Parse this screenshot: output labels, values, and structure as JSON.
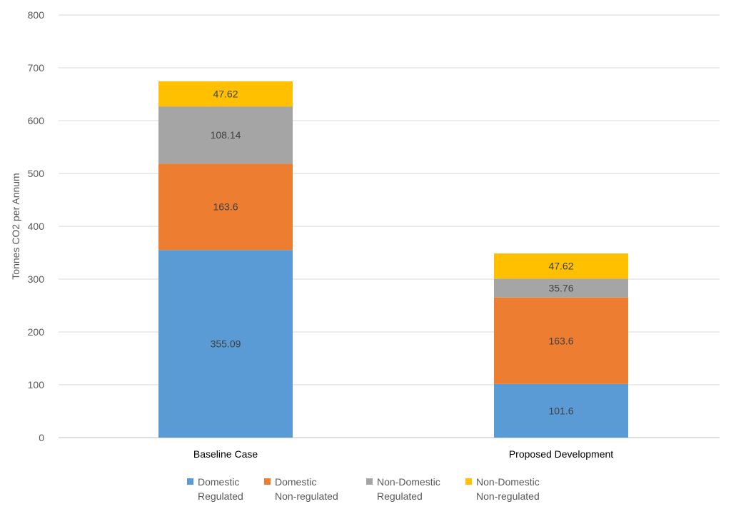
{
  "chart_data": {
    "type": "bar",
    "stacked": true,
    "categories": [
      "Baseline Case",
      "Proposed Development"
    ],
    "series": [
      {
        "name": "Domestic Regulated",
        "legend_lines": [
          "Domestic",
          "Regulated"
        ],
        "values": [
          355.09,
          101.6
        ],
        "color": "#5B9BD5"
      },
      {
        "name": "Domestic Non-regulated",
        "legend_lines": [
          "Domestic",
          "Non-regulated"
        ],
        "values": [
          163.6,
          163.6
        ],
        "color": "#ED7D31"
      },
      {
        "name": "Non-Domestic Regulated",
        "legend_lines": [
          "Non-Domestic",
          "Regulated"
        ],
        "values": [
          108.14,
          35.76
        ],
        "color": "#A5A5A5"
      },
      {
        "name": "Non-Domestic Non-regulated",
        "legend_lines": [
          "Non-Domestic",
          "Non-regulated"
        ],
        "values": [
          47.62,
          47.62
        ],
        "color": "#FFC000"
      }
    ],
    "xlabel": "",
    "ylabel": "Tonnes CO2 per Annum",
    "ylim": [
      0,
      800
    ],
    "yticks": [
      0,
      100,
      200,
      300,
      400,
      500,
      600,
      700,
      800
    ],
    "grid": true,
    "legend_position": "bottom"
  }
}
